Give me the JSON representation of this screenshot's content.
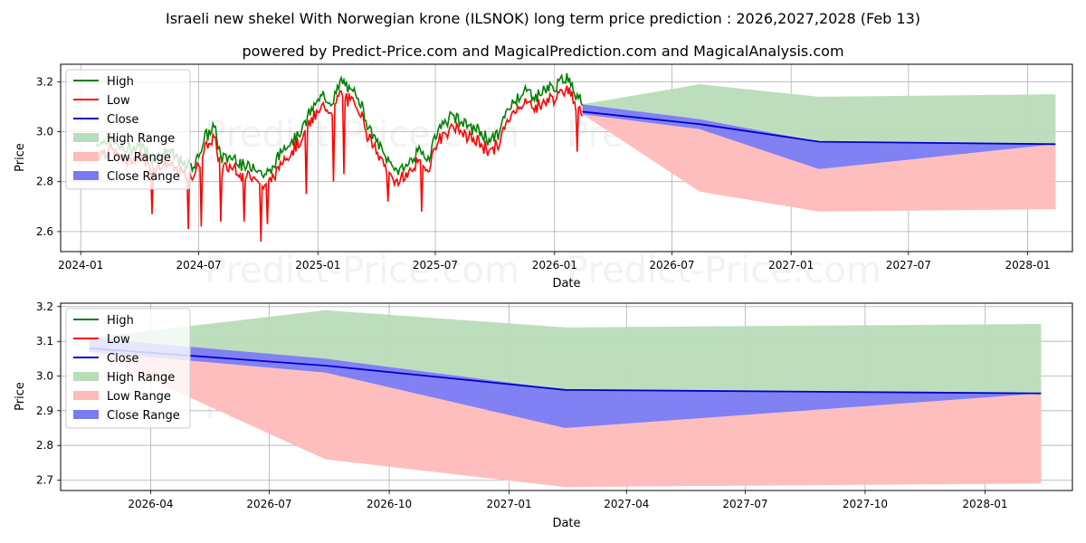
{
  "figure": {
    "title": "Israeli new shekel With Norwegian krone (ILSNOK) long term price prediction : 2026,2027,2028 (Feb 13)",
    "subtitle": "powered by Predict-Price.com and MagicalPrediction.com and MagicalAnalysis.com",
    "watermark": "Predict-Price.com"
  },
  "chart_data": [
    {
      "type": "line",
      "panel": "top",
      "xlabel": "Date",
      "ylabel": "Price",
      "xlim": [
        "2023-12-01",
        "2028-03-10"
      ],
      "ylim": [
        2.52,
        3.27
      ],
      "grid": true,
      "legend_position": "top-left",
      "x_tick_labels": [
        "2024-01",
        "2024-07",
        "2025-01",
        "2025-07",
        "2026-01",
        "2026-07",
        "2027-01",
        "2027-07",
        "2028-01"
      ],
      "y_ticks": [
        2.6,
        2.8,
        3.0,
        3.2
      ],
      "y_tick_labels": [
        "2.6",
        "2.8",
        "3.0",
        "3.2"
      ],
      "legend": [
        {
          "label": "High",
          "kind": "line",
          "color": "#008000"
        },
        {
          "label": "Low",
          "kind": "line",
          "color": "#ff0000"
        },
        {
          "label": "Close",
          "kind": "line",
          "color": "#0000cd"
        },
        {
          "label": "High Range",
          "kind": "patch",
          "color": "#b9dcb9"
        },
        {
          "label": "Low Range",
          "kind": "patch",
          "color": "#ffbaba"
        },
        {
          "label": "Close Range",
          "kind": "patch",
          "color": "#7a7af2"
        }
      ],
      "historical_anchors": [
        [
          "2024-01-25",
          2.93
        ],
        [
          "2024-02-15",
          2.95
        ],
        [
          "2024-03-10",
          2.9
        ],
        [
          "2024-04-01",
          2.93
        ],
        [
          "2024-04-20",
          2.87
        ],
        [
          "2024-05-15",
          2.9
        ],
        [
          "2024-06-10",
          2.84
        ],
        [
          "2024-06-25",
          2.85
        ],
        [
          "2024-07-10",
          2.95
        ],
        [
          "2024-07-25",
          3.0
        ],
        [
          "2024-08-05",
          2.87
        ],
        [
          "2024-08-25",
          2.88
        ],
        [
          "2024-09-10",
          2.83
        ],
        [
          "2024-09-25",
          2.85
        ],
        [
          "2024-10-10",
          2.8
        ],
        [
          "2024-10-25",
          2.84
        ],
        [
          "2024-11-10",
          2.92
        ],
        [
          "2024-11-25",
          2.95
        ],
        [
          "2024-12-10",
          3.0
        ],
        [
          "2024-12-25",
          3.08
        ],
        [
          "2025-01-10",
          3.12
        ],
        [
          "2025-01-25",
          3.1
        ],
        [
          "2025-02-05",
          3.18
        ],
        [
          "2025-02-20",
          3.14
        ],
        [
          "2025-03-05",
          3.12
        ],
        [
          "2025-03-20",
          3.0
        ],
        [
          "2025-04-05",
          2.92
        ],
        [
          "2025-04-20",
          2.86
        ],
        [
          "2025-05-05",
          2.82
        ],
        [
          "2025-05-20",
          2.85
        ],
        [
          "2025-06-05",
          2.9
        ],
        [
          "2025-06-20",
          2.87
        ],
        [
          "2025-07-01",
          2.96
        ],
        [
          "2025-07-15",
          3.02
        ],
        [
          "2025-08-01",
          3.04
        ],
        [
          "2025-08-20",
          3.0
        ],
        [
          "2025-09-05",
          2.98
        ],
        [
          "2025-09-20",
          2.95
        ],
        [
          "2025-10-05",
          2.96
        ],
        [
          "2025-10-20",
          3.06
        ],
        [
          "2025-11-05",
          3.12
        ],
        [
          "2025-11-20",
          3.14
        ],
        [
          "2025-12-05",
          3.12
        ],
        [
          "2025-12-20",
          3.15
        ],
        [
          "2026-01-05",
          3.16
        ],
        [
          "2026-01-20",
          3.2
        ],
        [
          "2026-02-01",
          3.14
        ],
        [
          "2026-02-13",
          3.11
        ]
      ],
      "low_spikes": [
        [
          "2024-04-20",
          2.67
        ],
        [
          "2024-06-15",
          2.61
        ],
        [
          "2024-07-05",
          2.62
        ],
        [
          "2024-08-05",
          2.64
        ],
        [
          "2024-09-10",
          2.64
        ],
        [
          "2024-10-05",
          2.56
        ],
        [
          "2024-10-15",
          2.63
        ],
        [
          "2024-12-15",
          2.75
        ],
        [
          "2025-01-25",
          2.8
        ],
        [
          "2025-02-10",
          2.83
        ],
        [
          "2025-04-20",
          2.72
        ],
        [
          "2025-06-10",
          2.68
        ],
        [
          "2026-02-05",
          2.92
        ]
      ],
      "forecast": {
        "dates": [
          "2026-02-13",
          "2026-08-13",
          "2027-02-13",
          "2028-02-13"
        ],
        "high": [
          3.11,
          3.19,
          3.14,
          3.15
        ],
        "low": [
          3.07,
          2.76,
          2.68,
          2.69
        ],
        "close_upper": [
          3.11,
          3.05,
          2.96,
          2.95
        ],
        "close_lower": [
          3.07,
          3.01,
          2.85,
          2.95
        ],
        "close": [
          3.08,
          3.03,
          2.96,
          2.95
        ]
      }
    },
    {
      "type": "line",
      "panel": "bottom",
      "xlabel": "Date",
      "ylabel": "Price",
      "xlim": [
        "2026-01-22",
        "2028-03-08"
      ],
      "ylim": [
        2.67,
        3.21
      ],
      "grid": true,
      "legend_position": "top-left",
      "x_tick_labels": [
        "2026-04",
        "2026-07",
        "2026-10",
        "2027-01",
        "2027-04",
        "2027-07",
        "2027-10",
        "2028-01"
      ],
      "y_ticks": [
        2.7,
        2.8,
        2.9,
        3.0,
        3.1,
        3.2
      ],
      "y_tick_labels": [
        "2.7",
        "2.8",
        "2.9",
        "3.0",
        "3.1",
        "3.2"
      ],
      "legend": [
        {
          "label": "High",
          "kind": "line",
          "color": "#008000"
        },
        {
          "label": "Low",
          "kind": "line",
          "color": "#ff0000"
        },
        {
          "label": "Close",
          "kind": "line",
          "color": "#0000cd"
        },
        {
          "label": "High Range",
          "kind": "patch",
          "color": "#b9dcb9"
        },
        {
          "label": "Low Range",
          "kind": "patch",
          "color": "#ffbaba"
        },
        {
          "label": "Close Range",
          "kind": "patch",
          "color": "#7a7af2"
        }
      ],
      "forecast": {
        "dates": [
          "2026-02-13",
          "2026-08-13",
          "2027-02-13",
          "2028-02-13"
        ],
        "high": [
          3.11,
          3.19,
          3.14,
          3.15
        ],
        "low": [
          3.07,
          2.76,
          2.68,
          2.69
        ],
        "close_upper": [
          3.11,
          3.05,
          2.96,
          2.95
        ],
        "close_lower": [
          3.07,
          3.01,
          2.85,
          2.95
        ],
        "close": [
          3.08,
          3.03,
          2.96,
          2.95
        ]
      }
    }
  ]
}
